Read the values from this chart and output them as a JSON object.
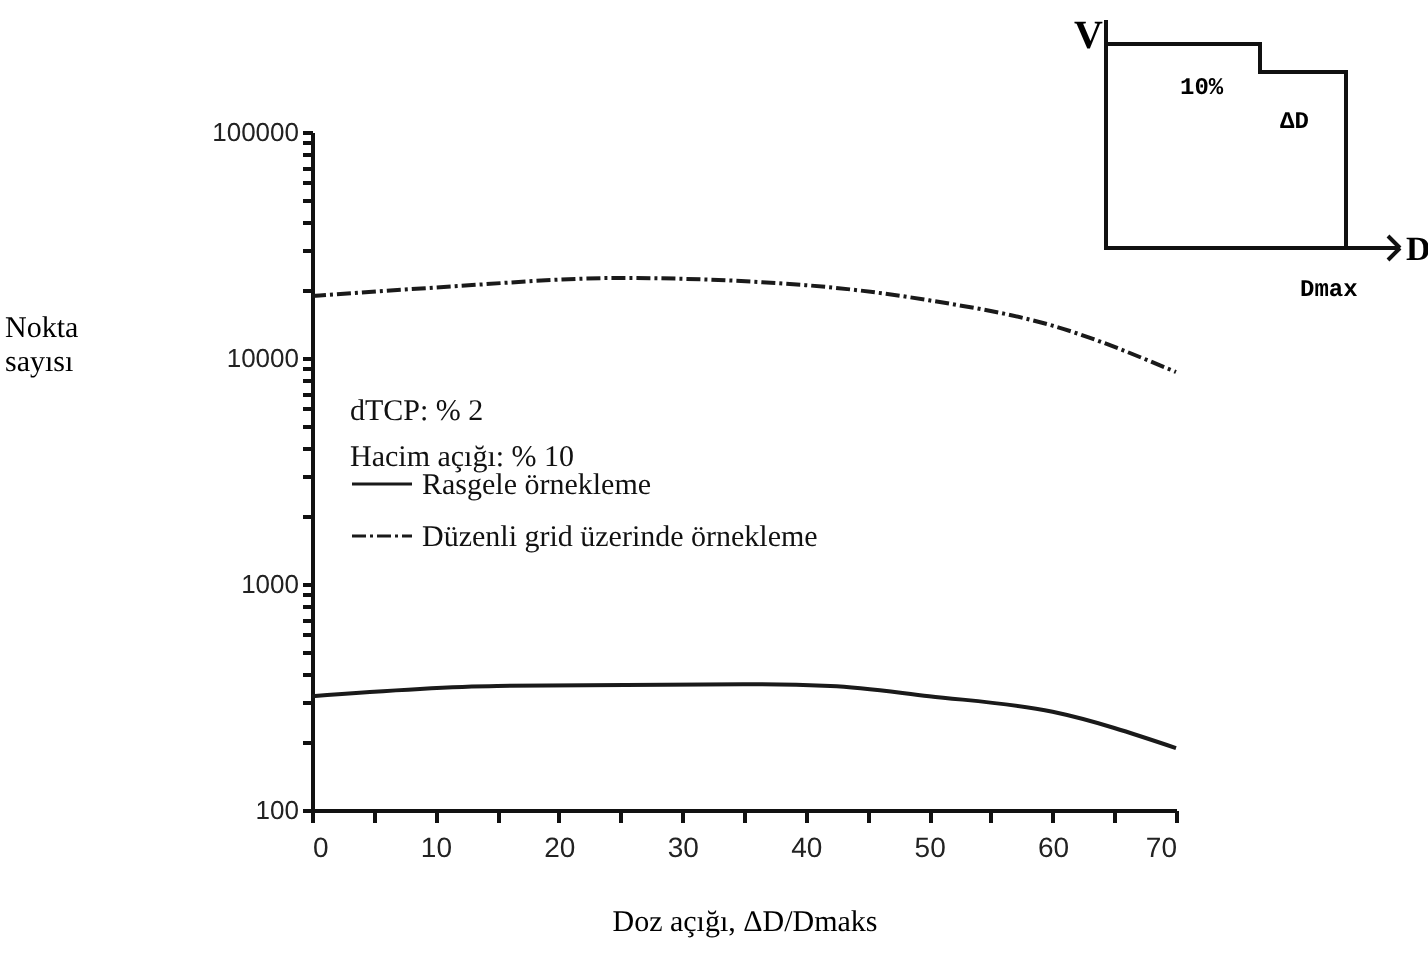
{
  "chart_data": {
    "type": "line",
    "xlabel": "Doz açığı, ΔD/Dmaks",
    "ylabel": "Nokta sayısı",
    "log": "y",
    "xlim": [
      0,
      70
    ],
    "xticks": [
      0,
      {
        "value": 5,
        "label": null
      },
      10,
      {
        "value": 15,
        "label": null
      },
      20,
      {
        "value": 25,
        "label": null
      },
      30,
      {
        "value": 35,
        "label": null
      },
      40,
      {
        "value": 45,
        "label": null
      },
      50,
      {
        "value": 55,
        "label": null
      },
      60,
      {
        "value": 65,
        "label": null
      },
      70
    ],
    "ylim": [
      100,
      100000
    ],
    "yticks": [
      100,
      {
        "value": 200,
        "label": null
      },
      {
        "value": 300,
        "label": null
      },
      {
        "value": 400,
        "label": null
      },
      {
        "value": 500,
        "label": null
      },
      {
        "value": 600,
        "label": null
      },
      {
        "value": 700,
        "label": null
      },
      {
        "value": 800,
        "label": null
      },
      {
        "value": 900,
        "label": null
      },
      1000,
      {
        "value": 2000,
        "label": null
      },
      {
        "value": 3000,
        "label": null
      },
      {
        "value": 4000,
        "label": null
      },
      {
        "value": 5000,
        "label": null
      },
      {
        "value": 6000,
        "label": null
      },
      {
        "value": 7000,
        "label": null
      },
      {
        "value": 8000,
        "label": null
      },
      {
        "value": 9000,
        "label": null
      },
      10000,
      {
        "value": 20000,
        "label": null
      },
      {
        "value": 30000,
        "label": null
      },
      {
        "value": 40000,
        "label": null
      },
      {
        "value": 50000,
        "label": null
      },
      {
        "value": 60000,
        "label": null
      },
      {
        "value": 70000,
        "label": null
      },
      {
        "value": 80000,
        "label": null
      },
      {
        "value": 90000,
        "label": null
      },
      100000
    ],
    "series": [
      {
        "name": "Rasgele örnekleme",
        "color": "#1a1a1a",
        "line_style": "solid",
        "x": [
          0,
          15,
          35,
          42,
          50,
          60,
          70
        ],
        "values": [
          319,
          354,
          360,
          354,
          319,
          272,
          188
        ]
      },
      {
        "name": "Düzenli grid üzerinde örnekleme",
        "color": "#1a1a1a",
        "line_style": "dashed",
        "x": [
          0,
          10,
          25,
          40,
          50,
          60,
          70
        ],
        "values": [
          18800,
          20500,
          22600,
          21000,
          18000,
          13900,
          8670
        ]
      }
    ],
    "legend": "left",
    "grid": false,
    "marker": "none",
    "annotations": [
      "dTCP: % 2",
      "Hacim açığı: % 10",
      "V",
      "10%",
      "ΔD",
      "D",
      "Dmax"
    ]
  }
}
